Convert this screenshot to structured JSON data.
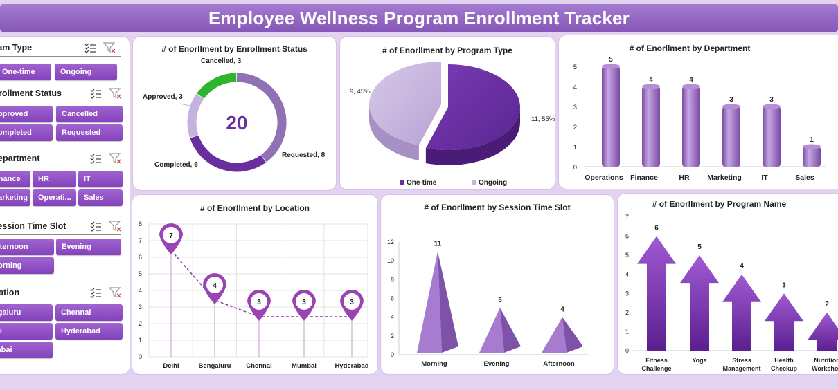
{
  "header": {
    "title": "Employee Wellness Program Enrollment Tracker"
  },
  "slicers": {
    "program_type": {
      "title": "Program Type",
      "items": [
        "One-time",
        "Ongoing"
      ]
    },
    "enrollment_status": {
      "title": "Enrollment Status",
      "items": [
        "Approved",
        "Cancelled",
        "Completed",
        "Requested"
      ]
    },
    "department": {
      "title": "Department",
      "items": [
        "Finance",
        "HR",
        "IT",
        "Marketing",
        "Operati...",
        "Sales"
      ]
    },
    "session_time_slot": {
      "title": "Session Time Slot",
      "items": [
        "Afternoon",
        "Evening",
        "Morning"
      ]
    },
    "location": {
      "title": "Location",
      "items": [
        "Bengaluru",
        "Chennai",
        "Delhi",
        "Hyderabad",
        "Mumbai"
      ]
    }
  },
  "colors": {
    "accent": "#7b3fb0",
    "green": "#2db52d",
    "light_purple": "#b79fd6",
    "title_bar": "#9466c4"
  },
  "chart_data": [
    {
      "type": "pie",
      "title": "# of Enorllment by Enrollment Status",
      "center_value": "20",
      "categories": [
        "Requested",
        "Completed",
        "Approved",
        "Cancelled"
      ],
      "values": [
        8,
        6,
        3,
        3
      ],
      "labels": [
        "Requested, 8",
        "Completed, 6",
        "Approved, 3",
        "Cancelled, 3"
      ],
      "colors": [
        "#8e72b3",
        "#6a2f9e",
        "#c5b3df",
        "#2db52d"
      ]
    },
    {
      "type": "pie",
      "title": "# of Enorllment by Program Type",
      "categories": [
        "One-time",
        "Ongoing"
      ],
      "values": [
        11,
        9
      ],
      "labels": [
        "11, 55%",
        "9, 45%"
      ],
      "colors": [
        "#6a2f9e",
        "#c8b6dd"
      ],
      "legend": [
        "One-time",
        "Ongoing"
      ],
      "legend_position": "bottom"
    },
    {
      "type": "bar",
      "title": "# of Enorllment by Department",
      "categories": [
        "Operations",
        "Finance",
        "HR",
        "Marketing",
        "IT",
        "Sales"
      ],
      "values": [
        5,
        4,
        4,
        3,
        3,
        1
      ],
      "ylim": [
        0,
        5
      ],
      "yticks": [
        "0",
        "1",
        "2",
        "3",
        "4",
        "5"
      ]
    },
    {
      "type": "line",
      "title": "# of Enorllment by Location",
      "categories": [
        "Delhi",
        "Bengaluru",
        "Chennai",
        "Mumbai",
        "Hyderabad"
      ],
      "values": [
        7,
        4,
        3,
        3,
        3
      ],
      "ylim": [
        0,
        8
      ],
      "yticks": [
        "0",
        "1",
        "2",
        "3",
        "4",
        "5",
        "6",
        "7",
        "8"
      ],
      "grid": true
    },
    {
      "type": "bar",
      "title": "# of Enorllment  by Session Time Slot",
      "categories": [
        "Morning",
        "Evening",
        "Afternoon"
      ],
      "values": [
        11,
        5,
        4
      ],
      "ylim": [
        0,
        12
      ],
      "yticks": [
        "0",
        "2",
        "4",
        "6",
        "8",
        "10",
        "12"
      ]
    },
    {
      "type": "bar",
      "title": "# of Enorllment by Program Name",
      "categories": [
        [
          "Fitness",
          "Challenge"
        ],
        [
          "Yoga"
        ],
        [
          "Stress",
          "Management"
        ],
        [
          "Health",
          "Checkup"
        ],
        [
          "Nutrition",
          "Workshop"
        ]
      ],
      "values": [
        6,
        5,
        4,
        3,
        2
      ],
      "ylim": [
        0,
        7
      ],
      "yticks": [
        "0",
        "1",
        "2",
        "3",
        "4",
        "5",
        "6",
        "7"
      ]
    }
  ]
}
